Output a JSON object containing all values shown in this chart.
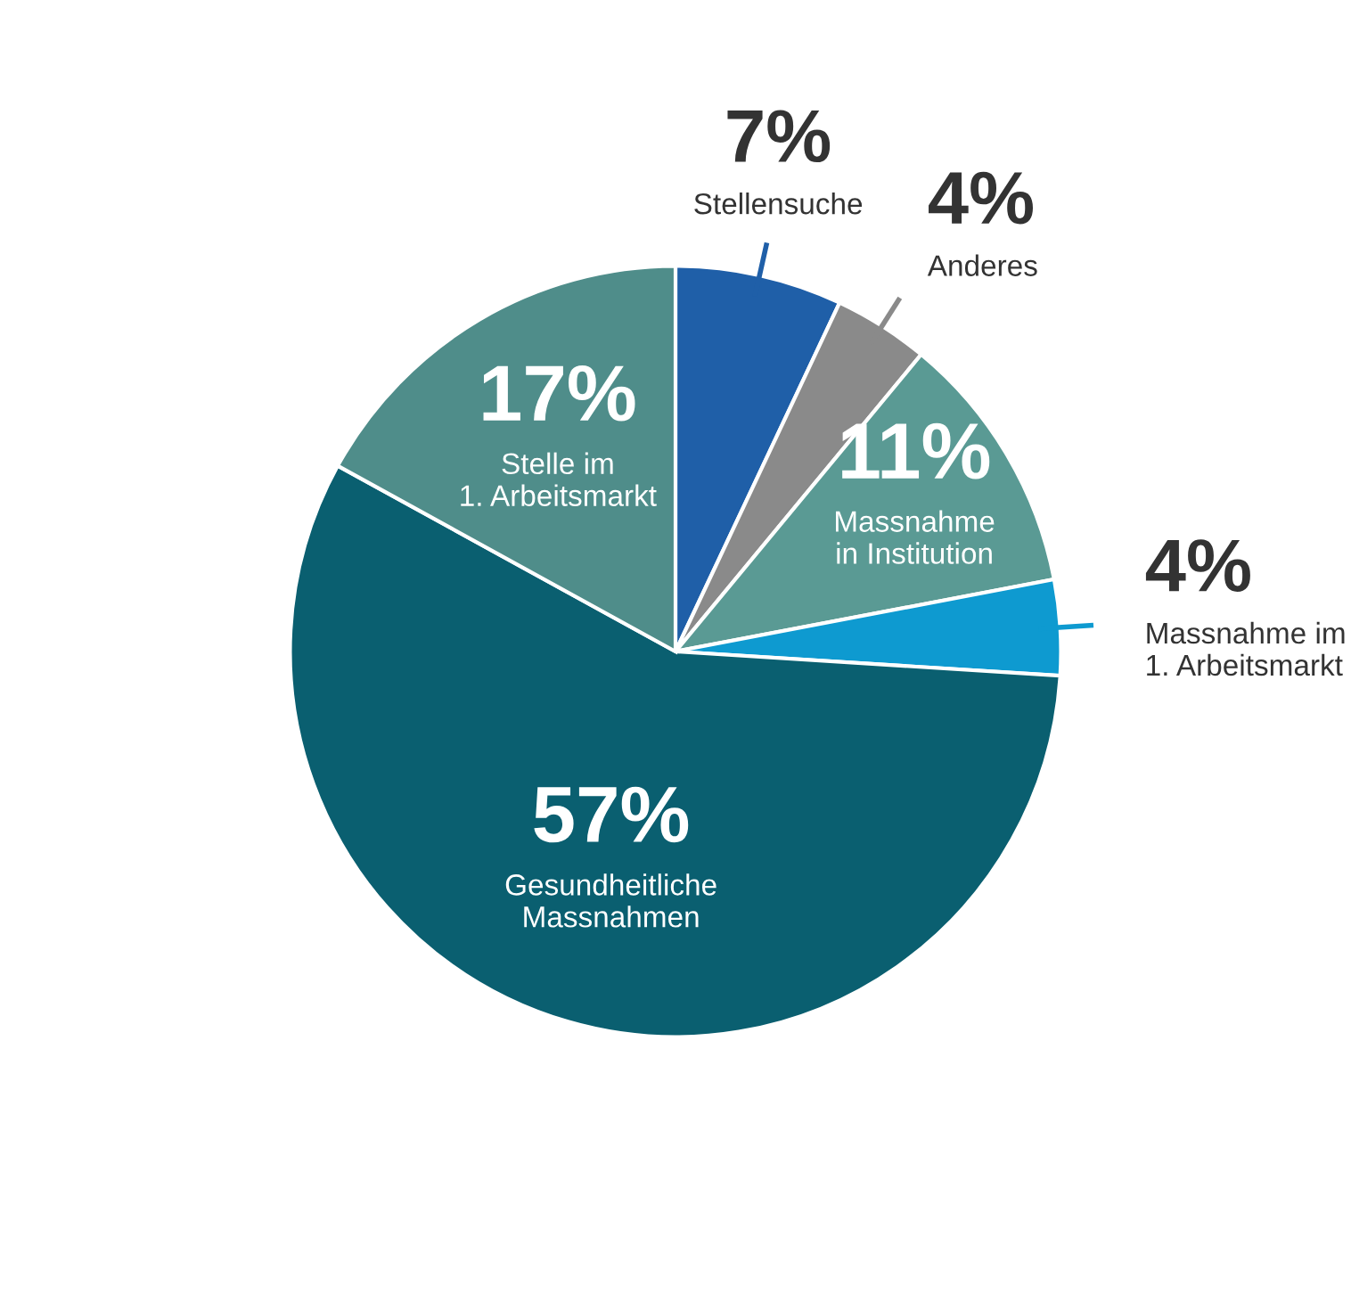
{
  "chart_data": {
    "type": "pie",
    "categories": [
      "Stellensuche",
      "Anderes",
      "Massnahme\nin Institution",
      "Massnahme im\n1. Arbeitsmarkt",
      "Gesundheitliche\nMassnahmen",
      "Stelle im\n1. Arbeitsmarkt"
    ],
    "values": [
      7,
      4,
      11,
      4,
      57,
      17
    ],
    "value_labels": [
      "7%",
      "4%",
      "11%",
      "4%",
      "57%",
      "17%"
    ],
    "colors": [
      "#1f5fa8",
      "#8a8a8a",
      "#5a9a94",
      "#0e9ad0",
      "#0a5f70",
      "#4f8d8a"
    ]
  }
}
